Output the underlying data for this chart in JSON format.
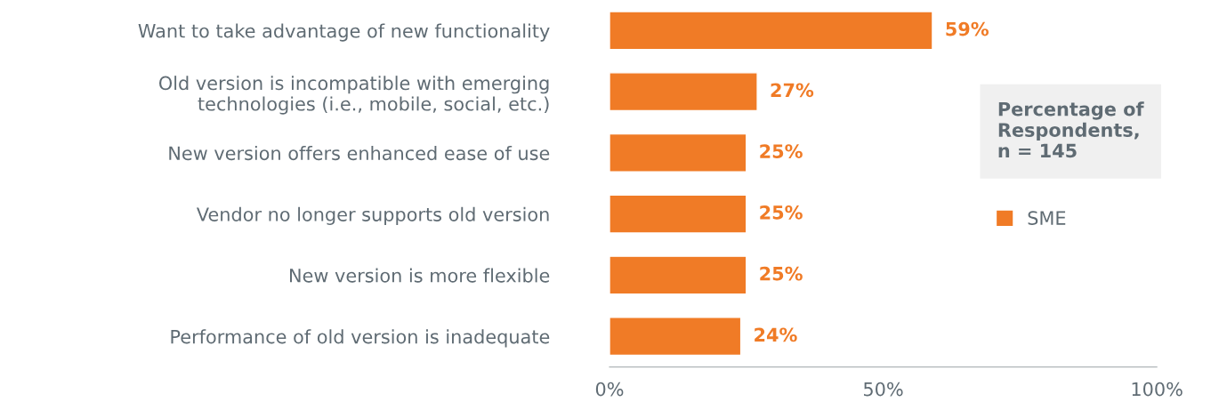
{
  "chart_data": {
    "type": "bar",
    "orientation": "horizontal",
    "categories": [
      "Want to take advantage of new functionality",
      "Old version is incompatible with emerging\ntechnologies (i.e., mobile, social, etc.)",
      "New version offers enhanced ease of use",
      "Vendor no longer supports old version",
      "New version is more flexible",
      "Performance of old version is inadequate"
    ],
    "series": [
      {
        "name": "SME",
        "color": "#f07b26",
        "values": [
          59,
          27,
          25,
          25,
          25,
          24
        ]
      }
    ],
    "value_labels": [
      "59%",
      "27%",
      "25%",
      "25%",
      "25%",
      "24%"
    ],
    "xlim": [
      0,
      100
    ],
    "xticks": [
      {
        "value": 0,
        "label": "0%"
      },
      {
        "value": 50,
        "label": "50%"
      },
      {
        "value": 100,
        "label": "100%"
      }
    ],
    "legend": "right",
    "legend_title": "Percentage of\nRespondents,\nn = 145",
    "grid": false
  }
}
